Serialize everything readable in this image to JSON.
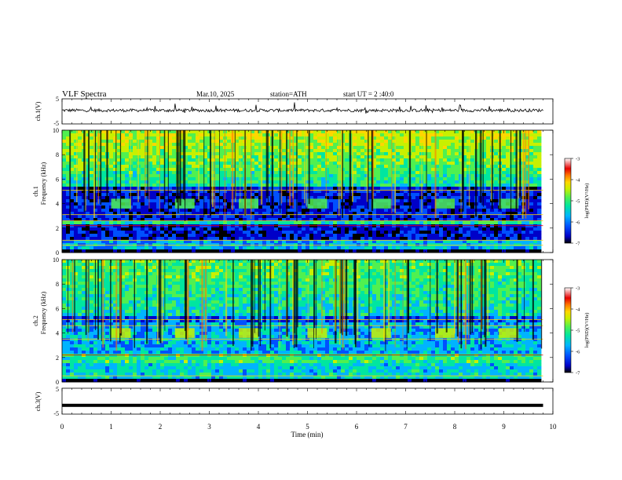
{
  "header": {
    "title": "VLF Spectra",
    "date": "Mar.10, 2025",
    "station": "station=ATH",
    "start_ut": "start UT = 2 :40:0"
  },
  "chart_data": [
    {
      "type": "line",
      "panel": "ch1-waveform",
      "ylabel": "ch.1(V)",
      "ylim": [
        -5,
        5
      ],
      "y_tick_labels": [
        "5",
        "-5"
      ],
      "xlim": [
        0,
        9.8
      ],
      "series_description_values": {
        "baseline": 0.4,
        "noise_amplitude": 1.2
      }
    },
    {
      "type": "heatmap",
      "panel": "ch1-spectrogram",
      "ylabel_line1": "ch.1",
      "ylabel_line2": "Frequency (kHz)",
      "ylim": [
        0,
        10
      ],
      "y_tick_labels": [
        "0",
        "2",
        "4",
        "6",
        "8",
        "10"
      ],
      "xlim": [
        0,
        9.8
      ],
      "colorbar": {
        "label": "log(PSD)(V²/Hz)",
        "range": [
          -7,
          -3
        ],
        "tick_labels": [
          "-3",
          "-4",
          "-5",
          "-6",
          "-7"
        ]
      },
      "bursts_min": [
        1.0,
        2.3,
        3.6,
        5.0,
        6.3,
        7.6,
        8.9
      ],
      "burst_freq_khz": [
        3.6,
        4.4
      ]
    },
    {
      "type": "heatmap",
      "panel": "ch2-spectrogram",
      "ylabel_line1": "ch.2",
      "ylabel_line2": "Frequency (kHz)",
      "ylim": [
        0,
        10
      ],
      "y_tick_labels": [
        "0",
        "2",
        "4",
        "6",
        "8",
        "10"
      ],
      "xlim": [
        0,
        9.8
      ],
      "colorbar": {
        "label": "log(PSD)(V²/Hz)",
        "range": [
          -7,
          -3
        ],
        "tick_labels": [
          "-3",
          "-4",
          "-5",
          "-6",
          "-7"
        ]
      },
      "bursts_min": [
        1.0,
        2.3,
        3.6,
        5.0,
        6.3,
        7.6,
        8.9
      ],
      "burst_freq_khz": [
        3.6,
        4.4
      ]
    },
    {
      "type": "line",
      "panel": "ch3-waveform",
      "ylabel": "ch.3(V)",
      "ylim": [
        -5,
        5
      ],
      "y_tick_labels": [
        "5",
        "-5"
      ],
      "xlim": [
        0,
        9.8
      ],
      "series_values": {
        "level": -1.6
      }
    }
  ],
  "xaxis": {
    "label": "Time (min)",
    "ticks": [
      0,
      1,
      2,
      3,
      4,
      5,
      6,
      7,
      8,
      9,
      10
    ],
    "tick_labels": [
      "0",
      "1",
      "2",
      "3",
      "4",
      "5",
      "6",
      "7",
      "8",
      "9",
      "10"
    ]
  },
  "colors": {
    "axis": "#000000",
    "trace": "#000000",
    "colormap": [
      "#000000",
      "#0000c8",
      "#0050ff",
      "#00b4ff",
      "#00e6a0",
      "#50f050",
      "#c8f000",
      "#ffd700",
      "#ff7800",
      "#e60000",
      "#ffffff"
    ]
  }
}
